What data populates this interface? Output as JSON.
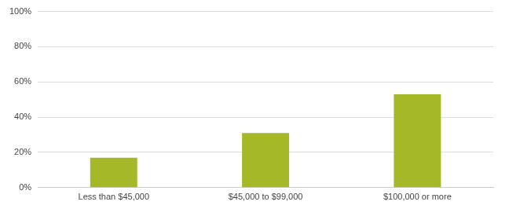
{
  "chart_data": {
    "type": "bar",
    "categories": [
      "Less than $45,000",
      "$45,000 to $99,000",
      "$100,000 or more"
    ],
    "values": [
      17,
      31,
      53
    ],
    "color": "#a5b828",
    "ylim": [
      0,
      100
    ],
    "yticks": [
      {
        "value": 0,
        "label": "0%"
      },
      {
        "value": 20,
        "label": "20%"
      },
      {
        "value": 40,
        "label": "40%"
      },
      {
        "value": 60,
        "label": "60%"
      },
      {
        "value": 80,
        "label": "80%"
      },
      {
        "value": 100,
        "label": "100%"
      }
    ],
    "grid": true
  }
}
